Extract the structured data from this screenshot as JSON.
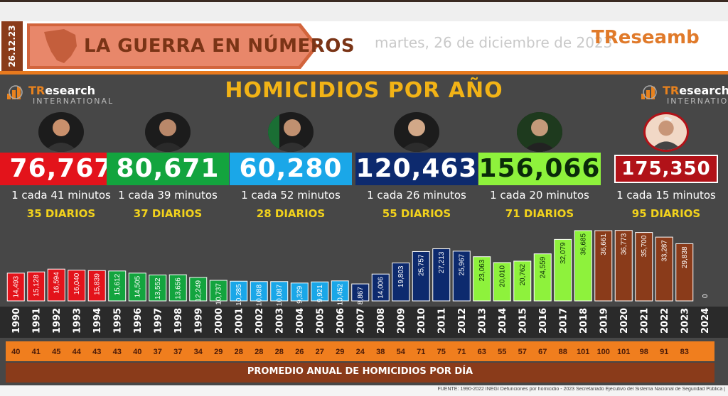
{
  "header": {
    "date_strip": "26.12.23",
    "banner": "LA GUERRA EN NÚMEROS",
    "date": "martes, 26 de diciembre de 2023",
    "brand": "TResearch",
    "brand_partial": "TReseamb"
  },
  "logo": {
    "name_accent": "TR",
    "name_rest": "esearch",
    "sub": "INTERNATIONAL"
  },
  "footer": {
    "label": "PROMEDIO ANUAL DE HOMICIDIOS POR DÍA",
    "source": "FUENTE: 1990-2022 INEGI Defunciones por homicidio - 2023 Secretariado Ejecutivo del Sistema Nacional de Seguridad Pública |"
  },
  "presidents": [
    {
      "total": "76,767",
      "freq": "1 cada 41 minutos",
      "daily": "35 DIARIOS",
      "color": "#e3131b",
      "text_color": "#ffffff"
    },
    {
      "total": "80,671",
      "freq": "1 cada 39 minutos",
      "daily": "37 DIARIOS",
      "color": "#13a43e",
      "text_color": "#ffffff"
    },
    {
      "total": "60,280",
      "freq": "1 cada 52 minutos",
      "daily": "28 DIARIOS",
      "color": "#1aa7e8",
      "text_color": "#ffffff"
    },
    {
      "total": "120,463",
      "freq": "1 cada 26 minutos",
      "daily": "55 DIARIOS",
      "color": "#0d2a6e",
      "text_color": "#ffffff"
    },
    {
      "total": "156,066",
      "freq": "1 cada 20 minutos",
      "daily": "71 DIARIOS",
      "color": "#8ef23c",
      "text_color": "#0a2a0a"
    },
    {
      "total": "175,350",
      "freq": "1 cada 15 minutos",
      "daily": "95 DIARIOS",
      "color": "#b11218",
      "text_color": "#ffffff"
    }
  ],
  "chart_data": {
    "type": "bar",
    "title": "HOMICIDIOS POR AÑO",
    "categories": [
      "1990",
      "1991",
      "1992",
      "1993",
      "1994",
      "1995",
      "1996",
      "1997",
      "1998",
      "1999",
      "2000",
      "2001",
      "2002",
      "2003",
      "2004",
      "2005",
      "2006",
      "2007",
      "2008",
      "2009",
      "2010",
      "2011",
      "2012",
      "2013",
      "2014",
      "2015",
      "2016",
      "2017",
      "2018",
      "2019",
      "2020",
      "2021",
      "2022",
      "2023",
      "2024"
    ],
    "values": [
      14493,
      15128,
      16594,
      16040,
      15839,
      15612,
      14505,
      13552,
      13656,
      12249,
      10737,
      10285,
      10088,
      10087,
      9329,
      9921,
      10452,
      8867,
      14006,
      19803,
      25757,
      27213,
      25967,
      23063,
      20010,
      20762,
      24559,
      32079,
      36685,
      36661,
      36773,
      35700,
      33287,
      29838,
      0
    ],
    "value_labels": [
      "14,493",
      "15,128",
      "16,594",
      "16,040",
      "15,839",
      "15,612",
      "14,505",
      "13,552",
      "13,656",
      "12,249",
      "10,737",
      "10,285",
      "10,088",
      "10,087",
      "9,329",
      "9,921",
      "10,452",
      "8,867",
      "14,006",
      "19,803",
      "25,757",
      "27,213",
      "25,967",
      "23,063",
      "20,010",
      "20,762",
      "24,559",
      "32,079",
      "36,685",
      "36,661",
      "36,773",
      "35,700",
      "33,287",
      "29,838",
      "0"
    ],
    "bar_colors": [
      "#e3131b",
      "#e3131b",
      "#e3131b",
      "#e3131b",
      "#e3131b",
      "#13a43e",
      "#13a43e",
      "#13a43e",
      "#13a43e",
      "#13a43e",
      "#13a43e",
      "#1aa7e8",
      "#1aa7e8",
      "#1aa7e8",
      "#1aa7e8",
      "#1aa7e8",
      "#1aa7e8",
      "#0d2a6e",
      "#0d2a6e",
      "#0d2a6e",
      "#0d2a6e",
      "#0d2a6e",
      "#0d2a6e",
      "#8ef23c",
      "#8ef23c",
      "#8ef23c",
      "#8ef23c",
      "#8ef23c",
      "#8ef23c",
      "#8a3b1a",
      "#8a3b1a",
      "#8a3b1a",
      "#8a3b1a",
      "#8a3b1a",
      "#8a3b1a"
    ],
    "daily_average": [
      "40",
      "41",
      "45",
      "44",
      "43",
      "43",
      "40",
      "37",
      "37",
      "34",
      "29",
      "28",
      "28",
      "28",
      "26",
      "27",
      "29",
      "24",
      "38",
      "54",
      "71",
      "75",
      "71",
      "63",
      "55",
      "57",
      "67",
      "88",
      "101",
      "100",
      "101",
      "98",
      "91",
      "83",
      ""
    ],
    "ylim": [
      0,
      40000
    ]
  }
}
